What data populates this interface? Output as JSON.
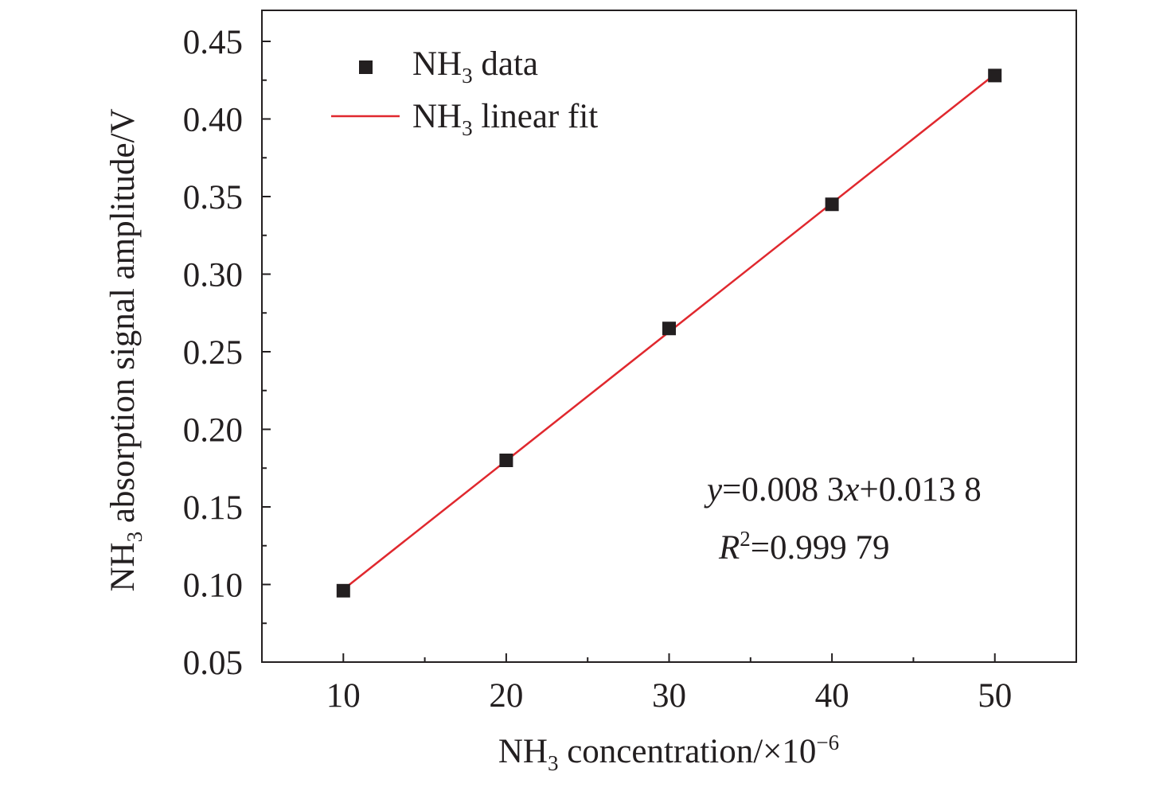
{
  "chart_data": {
    "type": "scatter",
    "xlabel": {
      "prefix": "NH",
      "sub": "3",
      "rest": " concentration/×10",
      "sup": "−6"
    },
    "ylabel": {
      "prefix": "NH",
      "sub": "3",
      "rest": " absorption signal amplitude/V"
    },
    "xlim": [
      5,
      55
    ],
    "ylim": [
      0.05,
      0.47
    ],
    "x_ticks": [
      10,
      20,
      30,
      40,
      50
    ],
    "x_tick_labels": [
      "10",
      "20",
      "30",
      "40",
      "50"
    ],
    "y_ticks": [
      0.05,
      0.1,
      0.15,
      0.2,
      0.25,
      0.3,
      0.35,
      0.4,
      0.45
    ],
    "y_tick_labels": [
      "0.05",
      "0.10",
      "0.15",
      "0.20",
      "0.25",
      "0.30",
      "0.35",
      "0.40",
      "0.45"
    ],
    "series": [
      {
        "name": "NH3 data",
        "kind": "scatter",
        "marker": "square",
        "color": "#231f20",
        "x": [
          10,
          20,
          30,
          40,
          50
        ],
        "y": [
          0.096,
          0.18,
          0.265,
          0.345,
          0.428
        ]
      },
      {
        "name": "NH3 linear fit",
        "kind": "line",
        "color": "#e0282e",
        "x": [
          10,
          50
        ],
        "y": [
          0.0968,
          0.4288
        ]
      }
    ],
    "legend": {
      "position": "top-left",
      "entries": [
        {
          "prefix": "NH",
          "sub": "3",
          "rest": " data"
        },
        {
          "prefix": "NH",
          "sub": "3",
          "rest": " linear fit"
        }
      ]
    },
    "annotations": {
      "equation": {
        "v1": "y",
        "t1": "=0.008 3",
        "v2": "x",
        "t2": "+0.013 8"
      },
      "r2": {
        "v": "R",
        "sup": "2",
        "t": "=0.999 79"
      }
    },
    "grid": false
  }
}
